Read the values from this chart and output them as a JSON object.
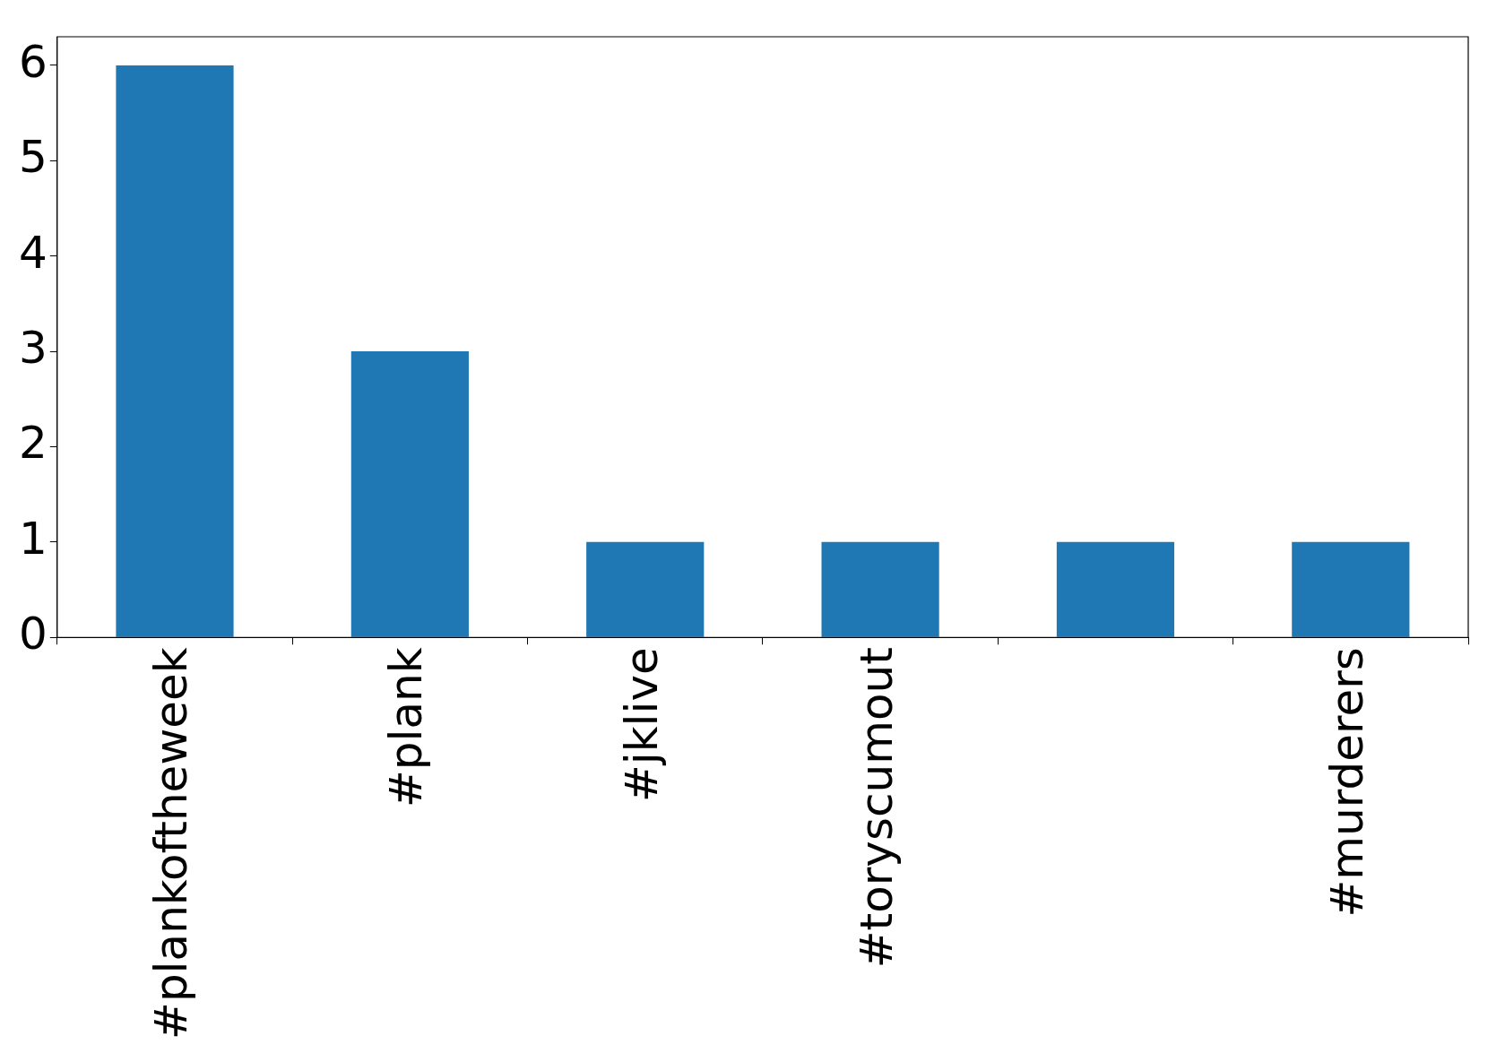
{
  "chart_data": {
    "type": "bar",
    "categories": [
      "#plankoftheweek",
      "#plank",
      "#jklive",
      "#toryscumout",
      null,
      "#murderers"
    ],
    "values": [
      6,
      3,
      1,
      1,
      1,
      1
    ],
    "color": "#1f77b4",
    "ylim": [
      0,
      6.3
    ],
    "yticks": [
      0,
      1,
      2,
      3,
      4,
      5,
      6
    ],
    "grid": false,
    "legend": false
  }
}
